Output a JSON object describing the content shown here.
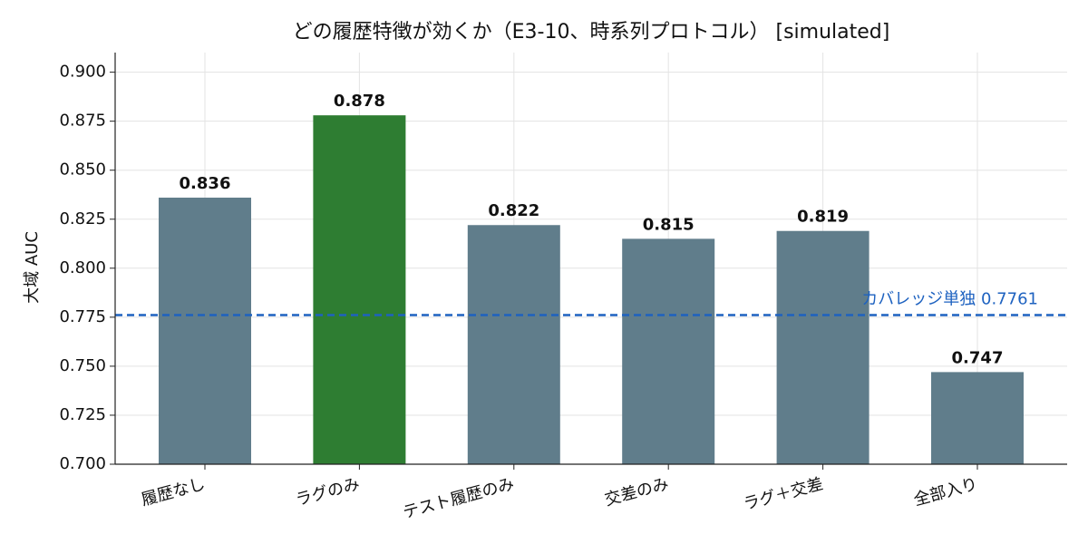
{
  "chart_data": {
    "type": "bar",
    "title": "どの履歴特徴が効くか（E3-10、時系列プロトコル） [simulated]",
    "y_label": "大域 AUC",
    "categories": [
      "履歴なし",
      "ラグのみ",
      "テスト履歴のみ",
      "交差のみ",
      "ラグ＋交差",
      "全部入り"
    ],
    "values": [
      0.836,
      0.878,
      0.822,
      0.815,
      0.819,
      0.747
    ],
    "colors": [
      "#607d8b",
      "#2e7d32",
      "#607d8b",
      "#607d8b",
      "#607d8b",
      "#607d8b"
    ],
    "ylim": [
      0.7,
      0.91
    ],
    "yticks": [
      {
        "value": 0.7,
        "label": "0.700"
      },
      {
        "value": 0.725,
        "label": "0.725"
      },
      {
        "value": 0.75,
        "label": "0.750"
      },
      {
        "value": 0.775,
        "label": "0.775"
      },
      {
        "value": 0.8,
        "label": "0.800"
      },
      {
        "value": 0.825,
        "label": "0.825"
      },
      {
        "value": 0.85,
        "label": "0.850"
      },
      {
        "value": 0.875,
        "label": "0.875"
      },
      {
        "value": 0.9,
        "label": "0.900"
      }
    ],
    "reference_line": {
      "value": 0.7761,
      "label": "カバレッジ単独 0.7761",
      "color": "#1e62c0"
    },
    "grid": true
  }
}
